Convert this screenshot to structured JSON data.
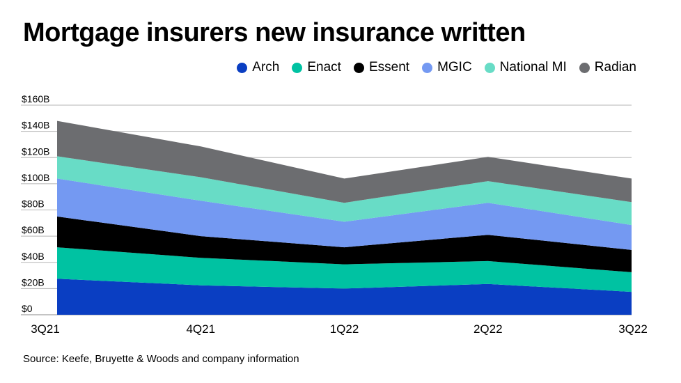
{
  "chart_data": {
    "type": "area",
    "stacked": true,
    "title": "Mortgage insurers new insurance written",
    "source": "Source: Keefe, Bruyette & Woods and company information",
    "categories": [
      "3Q21",
      "4Q21",
      "1Q22",
      "2Q22",
      "3Q22"
    ],
    "ylim": [
      0,
      160
    ],
    "yticks": [
      "$0",
      "$20B",
      "$40B",
      "$60B",
      "$80B",
      "$100B",
      "$120B",
      "$140B",
      "$160B"
    ],
    "ytick_values": [
      0,
      20,
      40,
      60,
      80,
      100,
      120,
      140,
      160
    ],
    "grid": true,
    "legend_position": "top-right",
    "series": [
      {
        "name": "Arch",
        "color": "#0a3ec2",
        "values": [
          27.5,
          22.5,
          20,
          23.5,
          17.5
        ]
      },
      {
        "name": "Enact",
        "color": "#00c2a2",
        "values": [
          24,
          21,
          18.5,
          17.5,
          15
        ]
      },
      {
        "name": "Essent",
        "color": "#000000",
        "values": [
          23.5,
          16.5,
          13,
          20,
          17
        ]
      },
      {
        "name": "MGIC",
        "color": "#7499f2",
        "values": [
          29,
          27,
          19.5,
          24.5,
          19
        ]
      },
      {
        "name": "National MI",
        "color": "#68dcc6",
        "values": [
          17,
          18,
          14.5,
          16.5,
          17.5
        ]
      },
      {
        "name": "Radian",
        "color": "#6c6d70",
        "values": [
          27,
          23.5,
          18.5,
          18.5,
          18
        ]
      }
    ]
  }
}
